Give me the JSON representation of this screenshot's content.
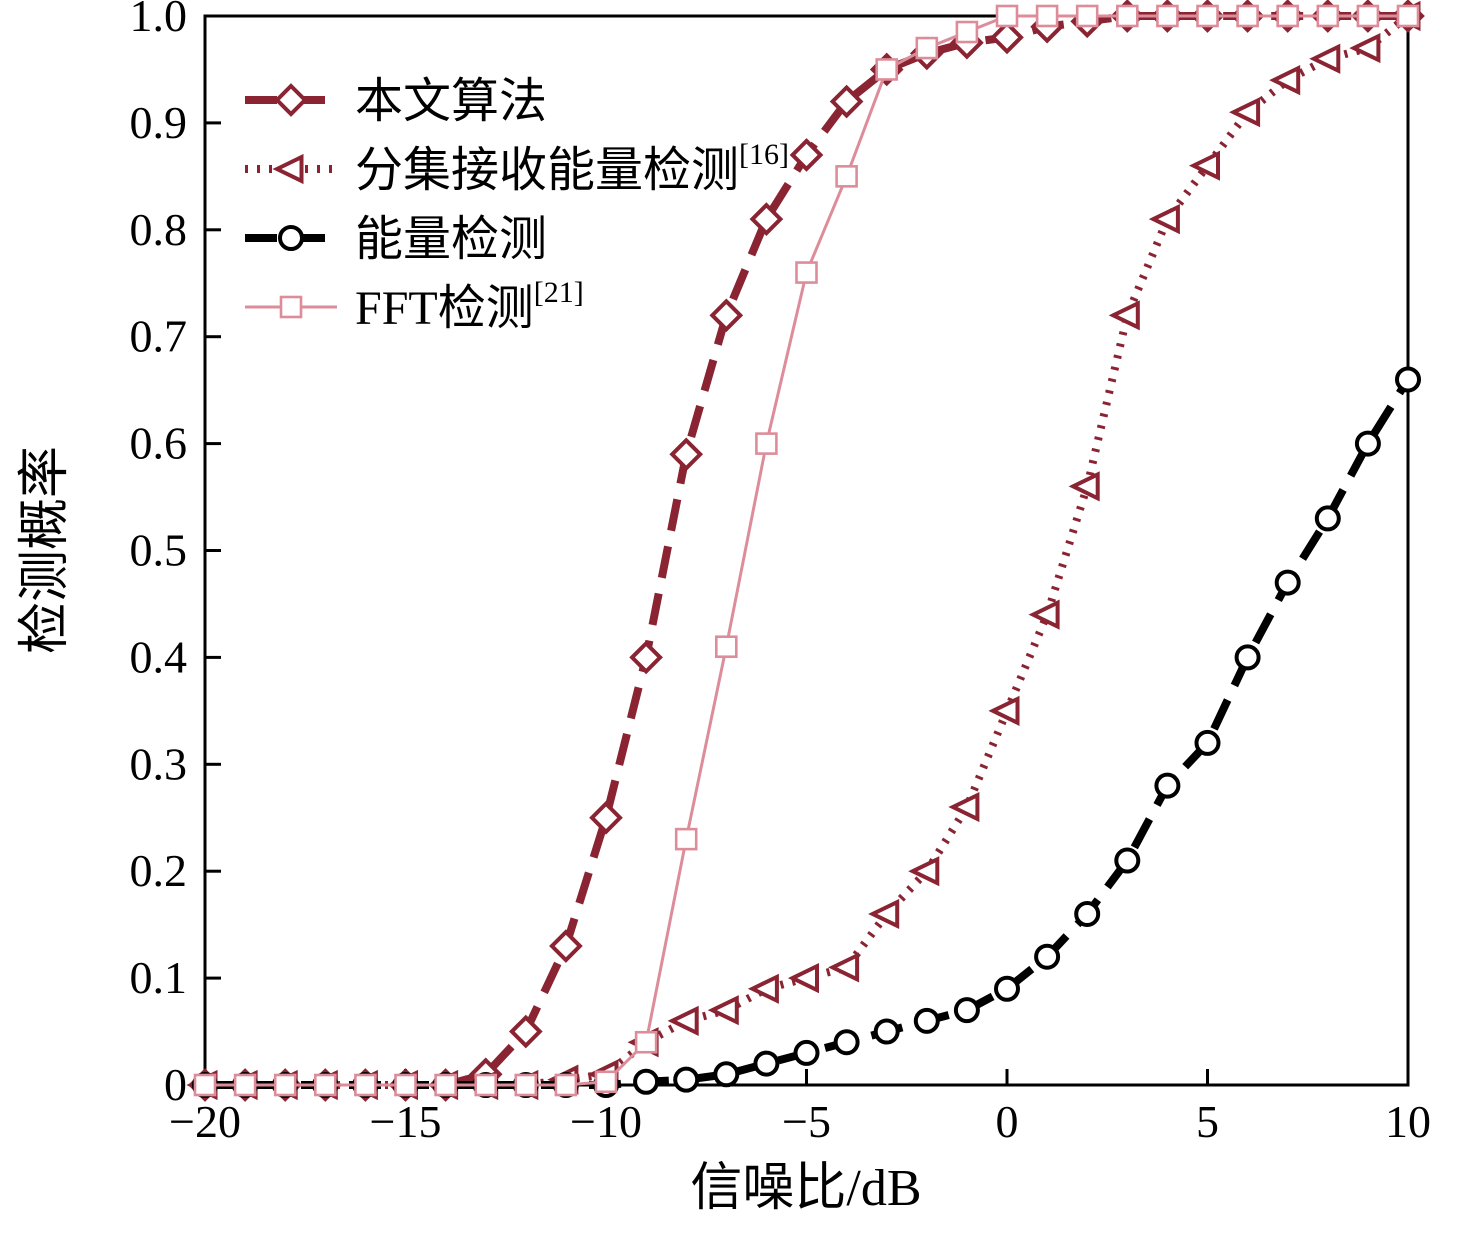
{
  "chart_data": {
    "type": "line",
    "title": "",
    "xlabel": "信噪比/dB",
    "ylabel": "检测概率",
    "xlim": [
      -20,
      10
    ],
    "ylim": [
      0,
      1.0
    ],
    "grid": false,
    "legend_position": "top-left",
    "xticks": [
      -20,
      -15,
      -10,
      -5,
      0,
      5,
      10
    ],
    "xtick_labels": [
      "−20",
      "−15",
      "−10",
      "−5",
      "0",
      "5",
      "10"
    ],
    "yticks": [
      0,
      0.1,
      0.2,
      0.3,
      0.4,
      0.5,
      0.6,
      0.7,
      0.8,
      0.9,
      1.0
    ],
    "ytick_labels": [
      "0",
      "0.1",
      "0.2",
      "0.3",
      "0.4",
      "0.5",
      "0.6",
      "0.7",
      "0.8",
      "0.9",
      "1.0"
    ],
    "x": [
      -20,
      -19,
      -18,
      -17,
      -16,
      -15,
      -14,
      -13,
      -12,
      -11,
      -10,
      -9,
      -8,
      -7,
      -6,
      -5,
      -4,
      -3,
      -2,
      -1,
      0,
      1,
      2,
      3,
      4,
      5,
      6,
      7,
      8,
      9,
      10
    ],
    "series": [
      {
        "name": "本文算法",
        "sup": "",
        "color": "#8a2432",
        "marker": "diamond",
        "line": "dash",
        "width": 8,
        "values": [
          0,
          0,
          0,
          0,
          0,
          0,
          0,
          0.01,
          0.05,
          0.13,
          0.25,
          0.4,
          0.59,
          0.72,
          0.81,
          0.87,
          0.92,
          0.95,
          0.965,
          0.975,
          0.98,
          0.99,
          0.995,
          1,
          1,
          1,
          1,
          1,
          1,
          1,
          1
        ]
      },
      {
        "name": "分集接收能量检测",
        "sup": "[16]",
        "color": "#8a2432",
        "marker": "triangle-left",
        "line": "dot",
        "width": 8,
        "values": [
          0,
          0,
          0,
          0,
          0,
          0,
          0,
          0,
          0,
          0.005,
          0.01,
          0.04,
          0.06,
          0.07,
          0.09,
          0.1,
          0.11,
          0.16,
          0.2,
          0.26,
          0.35,
          0.44,
          0.56,
          0.72,
          0.81,
          0.86,
          0.91,
          0.94,
          0.96,
          0.97,
          1.0
        ]
      },
      {
        "name": "能量检测",
        "sup": "",
        "color": "#000000",
        "marker": "circle",
        "line": "dash",
        "width": 8,
        "values": [
          0,
          0,
          0,
          0,
          0,
          0,
          0,
          0,
          0,
          0,
          0,
          0.003,
          0.005,
          0.01,
          0.02,
          0.03,
          0.04,
          0.05,
          0.06,
          0.07,
          0.09,
          0.12,
          0.16,
          0.21,
          0.28,
          0.32,
          0.4,
          0.47,
          0.53,
          0.6,
          0.66
        ]
      },
      {
        "name": "FFT检测",
        "sup": "[21]",
        "color": "#dd8d9a",
        "marker": "square",
        "line": "solid",
        "width": 3,
        "values": [
          0,
          0,
          0,
          0,
          0,
          0,
          0,
          0,
          0,
          0,
          0.003,
          0.04,
          0.23,
          0.41,
          0.6,
          0.76,
          0.85,
          0.95,
          0.97,
          0.985,
          1,
          1,
          1,
          1,
          1,
          1,
          1,
          1,
          1,
          1,
          1
        ]
      }
    ]
  }
}
